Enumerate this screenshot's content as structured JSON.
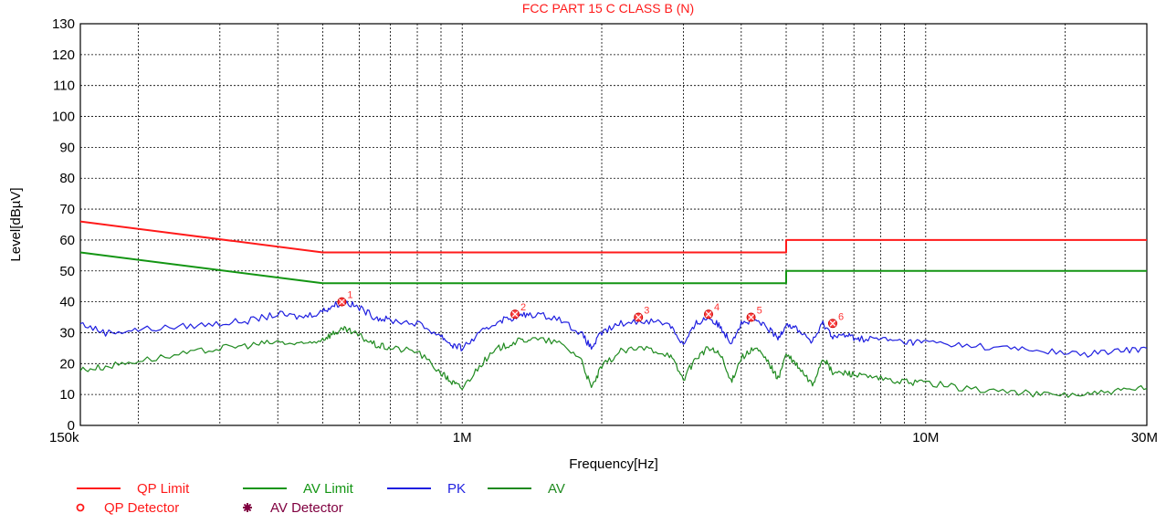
{
  "chart_data": {
    "type": "line",
    "title": "FCC PART 15 C CLASS B (N)",
    "xlabel": "Frequency[Hz]",
    "ylabel": "Level[dBµV]",
    "xscale": "log",
    "xlim": [
      150000,
      30000000
    ],
    "ylim": [
      0,
      130
    ],
    "grid": true,
    "y_ticks": [
      "0",
      "10",
      "20",
      "30",
      "40",
      "50",
      "60",
      "70",
      "80",
      "90",
      "100",
      "110",
      "120",
      "130"
    ],
    "x_tick_labels": [
      {
        "value": 150000,
        "label": "150k"
      },
      {
        "value": 1000000,
        "label": "1M"
      },
      {
        "value": 10000000,
        "label": "10M"
      },
      {
        "value": 30000000,
        "label": "30M"
      }
    ],
    "colors": {
      "qp": "#ff1a1a",
      "av_limit": "#139513",
      "pk": "#1f1fe0",
      "av": "#1f8a1f",
      "grid": "#000000",
      "marker": "#ff4444",
      "detector": "#800040"
    },
    "series": [
      {
        "name": "QP Limit",
        "x": [
          150000,
          500000,
          5000000,
          5000000,
          30000000
        ],
        "y": [
          66,
          56,
          56,
          60,
          60
        ]
      },
      {
        "name": "AV Limit",
        "x": [
          150000,
          500000,
          5000000,
          5000000,
          30000000
        ],
        "y": [
          56,
          46,
          46,
          50,
          50
        ]
      },
      {
        "name": "PK",
        "x": [
          150000,
          170000,
          200000,
          250000,
          300000,
          350000,
          400000,
          450000,
          500000,
          530000,
          560000,
          600000,
          650000,
          700000,
          800000,
          900000,
          950000,
          1000000,
          1100000,
          1200000,
          1300000,
          1400000,
          1600000,
          1800000,
          1900000,
          2000000,
          2200000,
          2500000,
          2800000,
          3000000,
          3200000,
          3400000,
          3600000,
          3800000,
          4000000,
          4300000,
          4600000,
          4800000,
          5000000,
          5300000,
          5700000,
          6000000,
          6300000,
          6800000,
          7200000,
          8000000,
          9000000,
          10000000,
          12000000,
          15000000,
          18000000,
          22000000,
          26000000,
          30000000
        ],
        "y": [
          33,
          30,
          31,
          32,
          33,
          34,
          36,
          35,
          37,
          39,
          40,
          38,
          35,
          34,
          33,
          29,
          26,
          25,
          30,
          34,
          35,
          36,
          35,
          30,
          25,
          30,
          33,
          34,
          33,
          26,
          33,
          35,
          32,
          27,
          33,
          34,
          31,
          28,
          33,
          31,
          27,
          33,
          29,
          29,
          28,
          28,
          27,
          27,
          26,
          25,
          24,
          23,
          24,
          25
        ]
      },
      {
        "name": "AV",
        "x": [
          150000,
          170000,
          200000,
          250000,
          300000,
          350000,
          400000,
          450000,
          500000,
          530000,
          560000,
          600000,
          650000,
          700000,
          800000,
          900000,
          950000,
          1000000,
          1100000,
          1200000,
          1300000,
          1400000,
          1600000,
          1800000,
          1900000,
          2000000,
          2200000,
          2500000,
          2800000,
          3000000,
          3200000,
          3400000,
          3600000,
          3800000,
          4000000,
          4300000,
          4600000,
          4800000,
          5000000,
          5300000,
          5700000,
          6000000,
          6300000,
          6800000,
          7200000,
          8000000,
          9000000,
          10000000,
          12000000,
          15000000,
          18000000,
          22000000,
          26000000,
          30000000
        ],
        "y": [
          18,
          19,
          21,
          23,
          25,
          26,
          27,
          26,
          28,
          30,
          31,
          29,
          26,
          25,
          24,
          17,
          14,
          12,
          20,
          25,
          27,
          28,
          27,
          22,
          12,
          19,
          24,
          25,
          23,
          15,
          22,
          25,
          23,
          14,
          22,
          25,
          20,
          15,
          23,
          19,
          13,
          22,
          17,
          17,
          16,
          15,
          14,
          14,
          12,
          11,
          10,
          10,
          11,
          12
        ]
      }
    ],
    "markers": [
      {
        "label": "1",
        "x": 550000,
        "y": 40
      },
      {
        "label": "2",
        "x": 1300000,
        "y": 36
      },
      {
        "label": "3",
        "x": 2400000,
        "y": 35
      },
      {
        "label": "4",
        "x": 3400000,
        "y": 36
      },
      {
        "label": "5",
        "x": 4200000,
        "y": 35
      },
      {
        "label": "6",
        "x": 6300000,
        "y": 33
      }
    ],
    "legend": {
      "placement": "bottom-left",
      "items": [
        {
          "label": "QP Limit",
          "kind": "line",
          "color": "#ff1a1a"
        },
        {
          "label": "AV Limit",
          "kind": "line",
          "color": "#139513"
        },
        {
          "label": "PK",
          "kind": "line",
          "color": "#1f1fe0"
        },
        {
          "label": "AV",
          "kind": "line",
          "color": "#1f8a1f"
        },
        {
          "label": "QP Detector",
          "kind": "circle",
          "color": "#ff1a1a"
        },
        {
          "label": "AV Detector",
          "kind": "star",
          "color": "#800040"
        }
      ]
    }
  }
}
